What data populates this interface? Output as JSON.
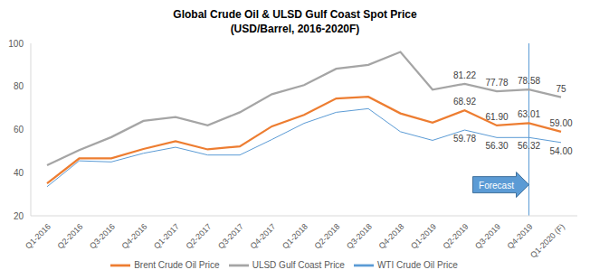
{
  "chart_data": {
    "type": "line",
    "title": "Global Crude Oil & ULSD Gulf Coast Spot Price",
    "subtitle": "(USD/Barrel, 2016-2020F)",
    "categories": [
      "Q1-2016",
      "Q2-2016",
      "Q3-2016",
      "Q4-2016",
      "Q1-2017",
      "Q2-2017",
      "Q3-2017",
      "Q4-2017",
      "Q1-2018",
      "Q2-2018",
      "Q3-2018",
      "Q4-2018",
      "Q1-2019",
      "Q2-2019",
      "Q3-2019",
      "Q4-2019",
      "Q1-2020 (F)"
    ],
    "series": [
      {
        "name": "WTI Crude Oil Price",
        "color": "#5b9bd5",
        "values": [
          33.5,
          45.5,
          45,
          49,
          51.8,
          48.2,
          48.2,
          55.4,
          62.9,
          68,
          69.7,
          59,
          55,
          59.78,
          56.3,
          56.32,
          54
        ],
        "value_labels": [
          null,
          null,
          null,
          null,
          null,
          null,
          null,
          null,
          null,
          null,
          null,
          null,
          null,
          "59.78",
          "56.30",
          "56.32",
          "54.00"
        ]
      },
      {
        "name": "Brent Crude Oil Price",
        "color": "#ed7d31",
        "values": [
          35,
          46.6,
          46.7,
          51,
          54.6,
          50.8,
          52.2,
          61.5,
          66.8,
          74.4,
          75.2,
          67.5,
          63.2,
          68.92,
          61.9,
          63.01,
          59
        ],
        "value_labels": [
          null,
          null,
          null,
          null,
          null,
          null,
          null,
          null,
          null,
          null,
          null,
          null,
          null,
          "68.92",
          "61.90",
          "63.01",
          "59.00"
        ]
      },
      {
        "name": "ULSD Gulf Coast Price",
        "color": "#a5a5a5",
        "values": [
          43.5,
          50.5,
          56.5,
          64,
          65.8,
          62,
          68,
          76.4,
          80.6,
          88.2,
          90,
          96,
          78.5,
          81.22,
          77.78,
          78.58,
          75
        ],
        "value_labels": [
          null,
          null,
          null,
          null,
          null,
          null,
          null,
          null,
          null,
          null,
          null,
          null,
          null,
          "81.22",
          "77.78",
          "78.58",
          "75"
        ]
      }
    ],
    "ylim": [
      20,
      100
    ],
    "yticks": [
      20,
      40,
      60,
      80,
      100
    ],
    "grid": false,
    "legend": "bottom",
    "data_labels": true,
    "annotations": [
      {
        "text": "Forecast",
        "x": "Q4-2019"
      }
    ]
  }
}
